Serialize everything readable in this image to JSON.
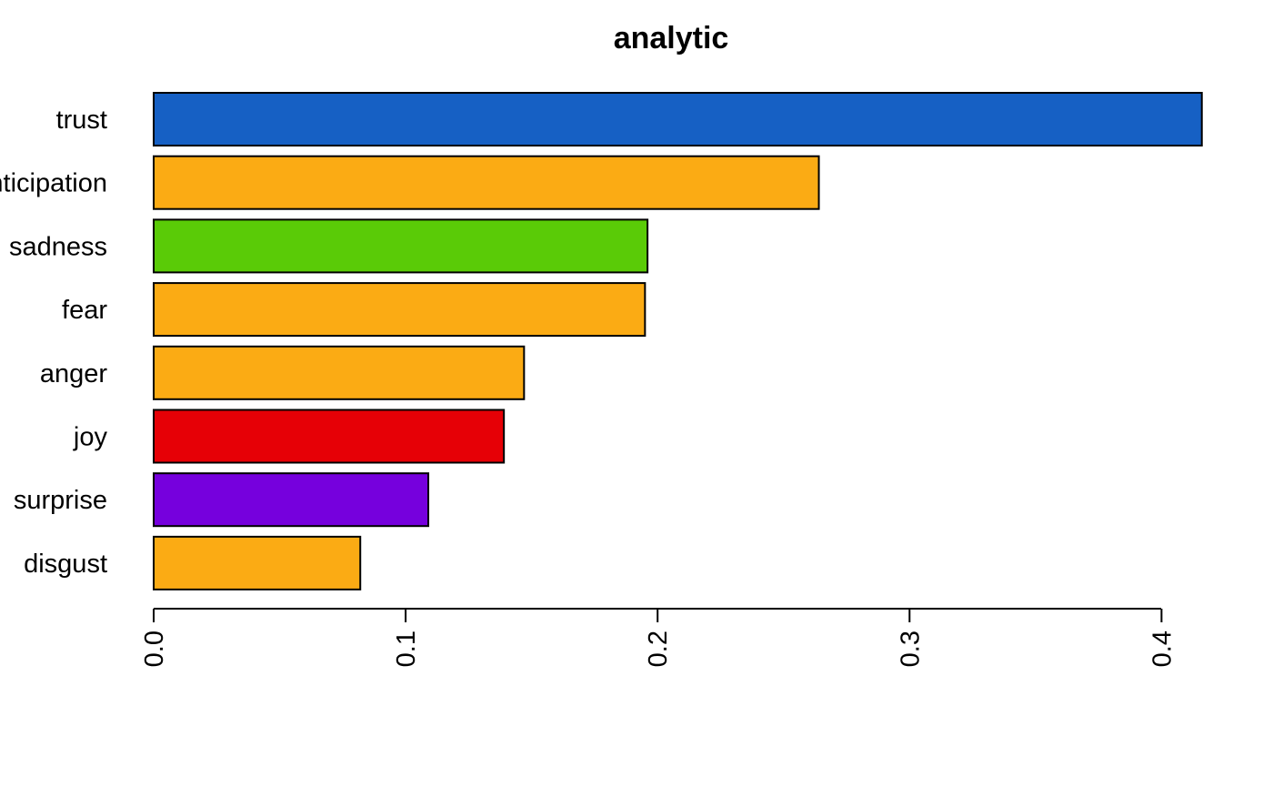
{
  "chart_data": {
    "type": "bar",
    "orientation": "horizontal",
    "title": "analytic",
    "xlabel": "",
    "ylabel": "",
    "categories": [
      "trust",
      "anticipation",
      "sadness",
      "fear",
      "anger",
      "joy",
      "surprise",
      "disgust"
    ],
    "values": [
      0.416,
      0.264,
      0.196,
      0.195,
      0.147,
      0.139,
      0.109,
      0.082
    ],
    "colors": [
      "#1660C4",
      "#FBAB14",
      "#5ACB07",
      "#FBAB14",
      "#FBAB14",
      "#E60006",
      "#7600DD",
      "#FBAB14"
    ],
    "xlim": [
      0,
      0.4
    ],
    "ticks": [
      "0.0",
      "0.1",
      "0.2",
      "0.3",
      "0.4"
    ],
    "tick_values": [
      0,
      0.1,
      0.2,
      0.3,
      0.4
    ],
    "grid": false,
    "legend": "none"
  }
}
